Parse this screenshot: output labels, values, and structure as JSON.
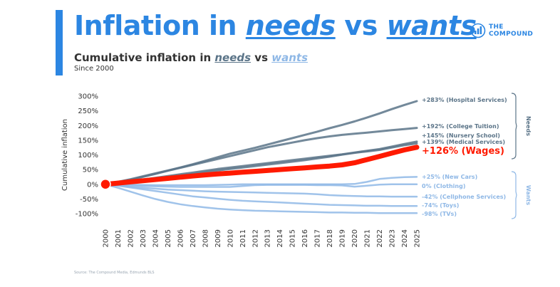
{
  "header": {
    "title_prefix": "Inflation in ",
    "title_needs": "needs",
    "title_mid": " vs ",
    "title_wants": "wants",
    "subtitle_prefix": "Cumulative inflation in ",
    "subtitle_needs": "needs",
    "subtitle_mid": " vs ",
    "subtitle_wants": "wants",
    "since": "Since 2000"
  },
  "logo": {
    "line1": "THE",
    "line2": "COMPOUND",
    "icon": "bar-chart-circle-icon"
  },
  "source": "Source: The Compound Media, Edmunds BLS",
  "colors": {
    "accent": "#2c86e2",
    "needs": "#5b7488",
    "wants": "#8fb8e6",
    "wages": "#ff1a00"
  },
  "chart_data": {
    "type": "line",
    "ylabel": "Cumulative inflation",
    "xlabel": "",
    "ylim": [
      -100,
      300
    ],
    "yticks": [
      "300%",
      "250%",
      "200%",
      "150%",
      "100%",
      "50%",
      "0%",
      "-50%",
      "-100%"
    ],
    "x": [
      "2000",
      "2001",
      "2002",
      "2003",
      "2004",
      "2005",
      "2006",
      "2007",
      "2008",
      "2009",
      "2010",
      "2011",
      "2012",
      "2013",
      "2014",
      "2015",
      "2016",
      "2017",
      "2018",
      "2019",
      "2020",
      "2021",
      "2022",
      "2023",
      "2024",
      "2025"
    ],
    "grid": false,
    "groups": {
      "needs": "Needs",
      "wants": "Wants"
    },
    "series": [
      {
        "name": "Hospital Services",
        "group": "needs",
        "label": "+283% (Hospital Services)",
        "values": [
          0,
          8,
          17,
          27,
          37,
          47,
          57,
          68,
          80,
          92,
          104,
          114,
          124,
          135,
          146,
          157,
          168,
          179,
          191,
          202,
          214,
          227,
          241,
          256,
          270,
          283
        ]
      },
      {
        "name": "College Tuition",
        "group": "needs",
        "label": "+192% (College Tuition)",
        "values": [
          0,
          7,
          15,
          25,
          35,
          46,
          56,
          66,
          76,
          86,
          96,
          106,
          116,
          126,
          134,
          142,
          150,
          157,
          163,
          168,
          172,
          176,
          180,
          184,
          188,
          192
        ]
      },
      {
        "name": "Nursery School",
        "group": "needs",
        "label": "+145% (Nursery School)",
        "values": [
          0,
          5,
          10,
          16,
          22,
          28,
          34,
          40,
          46,
          52,
          57,
          62,
          67,
          72,
          77,
          82,
          87,
          92,
          97,
          102,
          108,
          114,
          120,
          128,
          137,
          145
        ]
      },
      {
        "name": "Medical Services",
        "group": "needs",
        "label": "+139% (Medical Services)",
        "values": [
          0,
          5,
          10,
          15,
          20,
          25,
          30,
          35,
          41,
          47,
          52,
          57,
          62,
          67,
          72,
          77,
          82,
          88,
          94,
          101,
          107,
          112,
          117,
          125,
          133,
          139
        ]
      },
      {
        "name": "Wages",
        "group": "wages",
        "label": "+126% (Wages)",
        "values": [
          0,
          4,
          8,
          12,
          16,
          20,
          24,
          28,
          32,
          35,
          38,
          41,
          44,
          47,
          50,
          53,
          56,
          59,
          62,
          66,
          73,
          84,
          95,
          106,
          117,
          126
        ]
      },
      {
        "name": "New Cars",
        "group": "wants",
        "label": "+25% (New Cars)",
        "values": [
          0,
          0,
          -1,
          -2,
          -3,
          -3,
          -3,
          -3,
          -3,
          -2,
          -1,
          0,
          0,
          0,
          0,
          0,
          0,
          0,
          0,
          0,
          1,
          8,
          18,
          22,
          24,
          25
        ]
      },
      {
        "name": "Clothing",
        "group": "wants",
        "label": "0% (Clothing)",
        "values": [
          0,
          -2,
          -4,
          -6,
          -7,
          -8,
          -9,
          -9,
          -9,
          -9,
          -9,
          -6,
          -3,
          -2,
          -2,
          -2,
          -2,
          -3,
          -3,
          -4,
          -8,
          -5,
          -1,
          0,
          0,
          0
        ]
      },
      {
        "name": "Cellphone Services",
        "group": "wants",
        "label": "-42% (Cellphone Services)",
        "values": [
          0,
          -4,
          -8,
          -12,
          -15,
          -18,
          -20,
          -22,
          -24,
          -25,
          -26,
          -27,
          -28,
          -29,
          -30,
          -31,
          -32,
          -34,
          -37,
          -39,
          -40,
          -41,
          -41,
          -42,
          -42,
          -42
        ]
      },
      {
        "name": "Toys",
        "group": "wants",
        "label": "-74% (Toys)",
        "values": [
          0,
          -5,
          -11,
          -17,
          -23,
          -29,
          -35,
          -41,
          -45,
          -49,
          -53,
          -56,
          -58,
          -60,
          -62,
          -64,
          -66,
          -68,
          -70,
          -71,
          -72,
          -73,
          -73,
          -74,
          -74,
          -74
        ]
      },
      {
        "name": "TVs",
        "group": "wants",
        "label": "-98% (TVs)",
        "values": [
          0,
          -12,
          -25,
          -38,
          -50,
          -60,
          -68,
          -74,
          -79,
          -83,
          -86,
          -88,
          -90,
          -91,
          -92,
          -93,
          -94,
          -95,
          -96,
          -96,
          -97,
          -97,
          -98,
          -98,
          -98,
          -98
        ]
      }
    ]
  }
}
